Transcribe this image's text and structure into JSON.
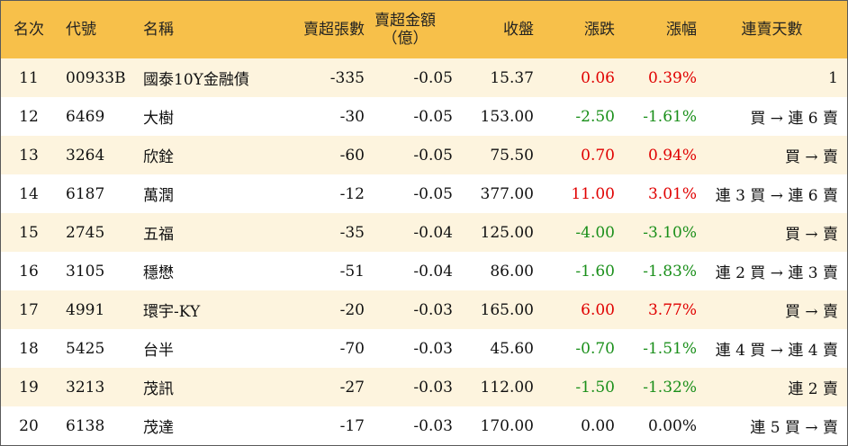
{
  "headers": {
    "rank": "名次",
    "code": "代號",
    "name": "名稱",
    "sell_volume": "賣超張數",
    "sell_amount_line1": "賣超金額",
    "sell_amount_line2": "（億）",
    "close": "收盤",
    "change": "漲跌",
    "change_pct": "漲幅",
    "streak": "連賣天數"
  },
  "colors": {
    "header_bg": "#f7c04a",
    "odd_row_bg": "#fdf4de",
    "up": "#e00000",
    "down": "#1a8f1a"
  },
  "rows": [
    {
      "rank": "11",
      "code": "00933B",
      "name": "國泰10Y金融債",
      "volume": "-335",
      "amount": "-0.05",
      "close": "15.37",
      "change": "0.06",
      "pct": "0.39%",
      "dir": "up",
      "streak": "1"
    },
    {
      "rank": "12",
      "code": "6469",
      "name": "大樹",
      "volume": "-30",
      "amount": "-0.05",
      "close": "153.00",
      "change": "-2.50",
      "pct": "-1.61%",
      "dir": "down",
      "streak": "買 → 連 6 賣"
    },
    {
      "rank": "13",
      "code": "3264",
      "name": "欣銓",
      "volume": "-60",
      "amount": "-0.05",
      "close": "75.50",
      "change": "0.70",
      "pct": "0.94%",
      "dir": "up",
      "streak": "買 → 賣"
    },
    {
      "rank": "14",
      "code": "6187",
      "name": "萬潤",
      "volume": "-12",
      "amount": "-0.05",
      "close": "377.00",
      "change": "11.00",
      "pct": "3.01%",
      "dir": "up",
      "streak": "連 3 買 → 連 6 賣"
    },
    {
      "rank": "15",
      "code": "2745",
      "name": "五福",
      "volume": "-35",
      "amount": "-0.04",
      "close": "125.00",
      "change": "-4.00",
      "pct": "-3.10%",
      "dir": "down",
      "streak": "買 → 賣"
    },
    {
      "rank": "16",
      "code": "3105",
      "name": "穩懋",
      "volume": "-51",
      "amount": "-0.04",
      "close": "86.00",
      "change": "-1.60",
      "pct": "-1.83%",
      "dir": "down",
      "streak": "連 2 買 → 連 3 賣"
    },
    {
      "rank": "17",
      "code": "4991",
      "name": "環宇-KY",
      "volume": "-20",
      "amount": "-0.03",
      "close": "165.00",
      "change": "6.00",
      "pct": "3.77%",
      "dir": "up",
      "streak": "買 → 賣"
    },
    {
      "rank": "18",
      "code": "5425",
      "name": "台半",
      "volume": "-70",
      "amount": "-0.03",
      "close": "45.60",
      "change": "-0.70",
      "pct": "-1.51%",
      "dir": "down",
      "streak": "連 4 買 → 連 4 賣"
    },
    {
      "rank": "19",
      "code": "3213",
      "name": "茂訊",
      "volume": "-27",
      "amount": "-0.03",
      "close": "112.00",
      "change": "-1.50",
      "pct": "-1.32%",
      "dir": "down",
      "streak": "連 2 賣"
    },
    {
      "rank": "20",
      "code": "6138",
      "name": "茂達",
      "volume": "-17",
      "amount": "-0.03",
      "close": "170.00",
      "change": "0.00",
      "pct": "0.00%",
      "dir": "flat",
      "streak": "連 5 買 → 賣"
    }
  ]
}
